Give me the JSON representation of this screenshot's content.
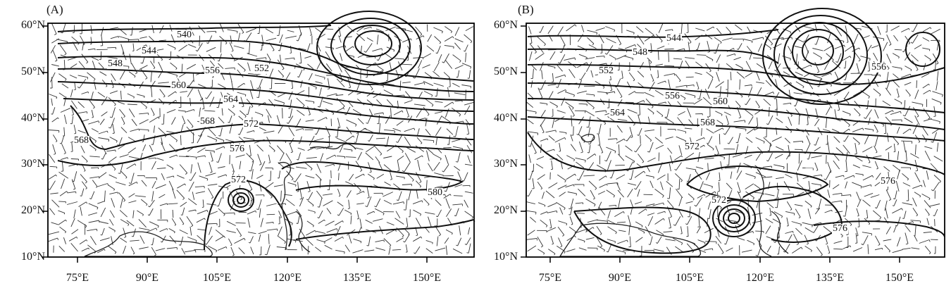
{
  "panels": [
    {
      "label": "(A)",
      "y_ticks": [
        "60°N",
        "50°N",
        "40°N",
        "30°N",
        "20°N",
        "10°N"
      ],
      "x_ticks": [
        "75°E",
        "90°E",
        "105°E",
        "120°E",
        "135°E",
        "150°E"
      ],
      "contour_labels": [
        "540",
        "544",
        "548",
        "556",
        "552",
        "560",
        "564",
        "568",
        "572",
        "568",
        "576",
        "572",
        "580"
      ]
    },
    {
      "label": "(B)",
      "y_ticks": [
        "60°N",
        "50°N",
        "40°N",
        "30°N",
        "20°N",
        "10°N"
      ],
      "x_ticks": [
        "75°E",
        "90°E",
        "105°E",
        "120°E",
        "135°E",
        "150°E"
      ],
      "contour_labels": [
        "544",
        "548",
        "552",
        "556",
        "556",
        "560",
        "564",
        "568",
        "572",
        "576",
        "572",
        "576"
      ]
    }
  ]
}
